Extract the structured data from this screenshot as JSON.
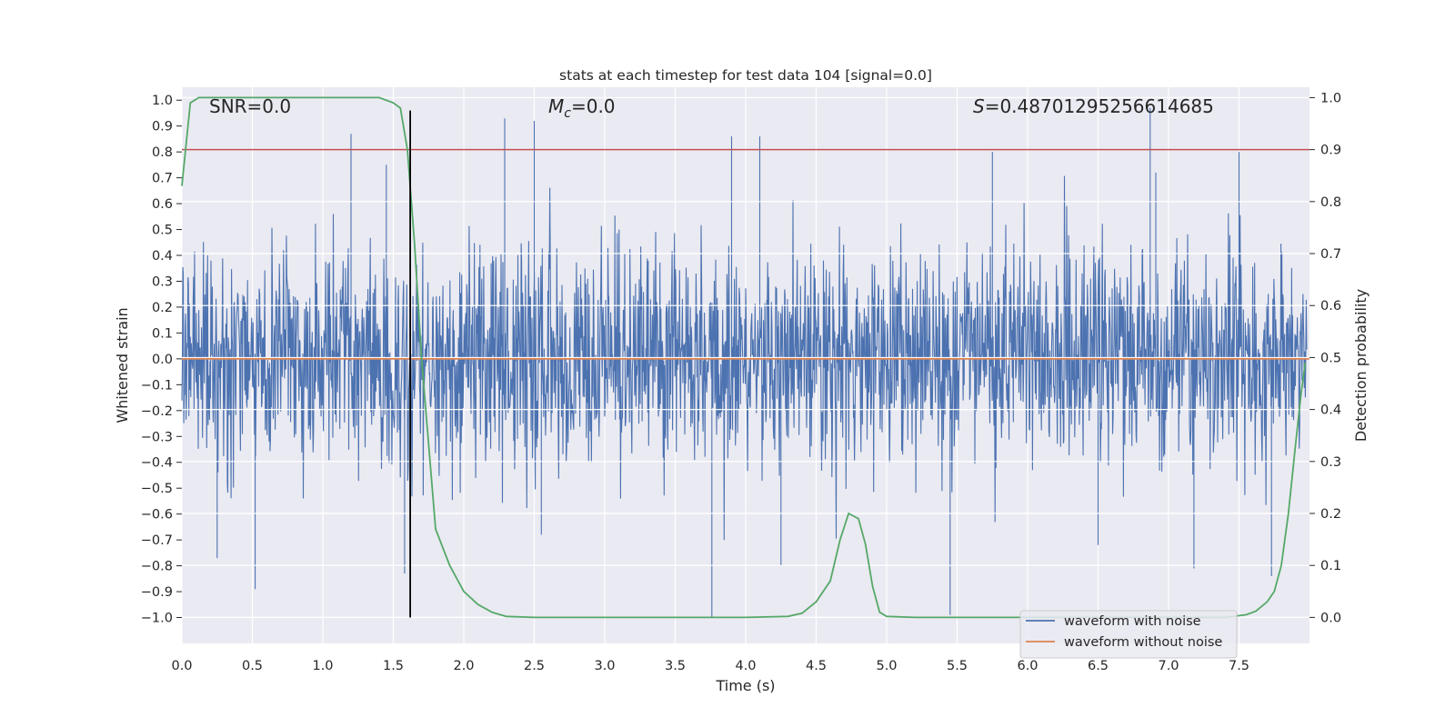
{
  "chart_data": {
    "type": "line",
    "title": "stats at each timestep for test data 104 [signal=0.0]",
    "xlabel": "Time (s)",
    "ylabel": "Whitened strain",
    "y2label": "Detection probability",
    "xlim": [
      0.0,
      8.0
    ],
    "ylim": [
      -1.1,
      1.05
    ],
    "y2lim": [
      -0.05,
      1.02
    ],
    "xticks": [
      "0.0",
      "0.5",
      "1.0",
      "1.5",
      "2.0",
      "2.5",
      "3.0",
      "3.5",
      "4.0",
      "4.5",
      "5.0",
      "5.5",
      "6.0",
      "6.5",
      "7.0",
      "7.5"
    ],
    "yticks": [
      "1.0",
      "0.9",
      "0.8",
      "0.7",
      "0.6",
      "0.5",
      "0.4",
      "0.3",
      "0.2",
      "0.1",
      "0.0",
      "−0.1",
      "−0.2",
      "−0.3",
      "−0.4",
      "−0.5",
      "−0.6",
      "−0.7",
      "−0.8",
      "−0.9",
      "−1.0"
    ],
    "y2ticks": [
      "1.0",
      "0.9",
      "0.8",
      "0.7",
      "0.6",
      "0.5",
      "0.4",
      "0.3",
      "0.2",
      "0.1",
      "0.0"
    ],
    "annotations": {
      "snr": "SNR=0.0",
      "mc": "=0.0",
      "mc_symbol": "M",
      "mc_sub": "c",
      "s": "=0.48701295256614685",
      "s_symbol": "S"
    },
    "legend": {
      "placement": "lower-right",
      "entries": [
        "waveform with noise",
        "waveform without noise"
      ]
    },
    "colors": {
      "noise": "#4c72b0",
      "clean": "#dd8452",
      "prob": "#55a868",
      "threshold": "#c44e52",
      "marker": "#000000",
      "background": "#eaeaf2"
    },
    "series": [
      {
        "name": "waveform with noise",
        "description": "dense noise band, mostly within -0.45..0.5, peaks near 0.97 at t~6.87 and -1.0 at t~3.76"
      },
      {
        "name": "waveform without noise",
        "x": [
          0.0,
          8.0
        ],
        "values": [
          0.0,
          0.0
        ]
      }
    ],
    "noise_peaks": [
      [
        0.52,
        -0.89
      ],
      [
        0.25,
        -0.77
      ],
      [
        1.2,
        0.87
      ],
      [
        1.45,
        0.75
      ],
      [
        1.58,
        -0.83
      ],
      [
        2.29,
        0.93
      ],
      [
        2.5,
        0.92
      ],
      [
        2.55,
        -0.68
      ],
      [
        3.76,
        -1.0
      ],
      [
        3.9,
        0.86
      ],
      [
        4.1,
        0.86
      ],
      [
        4.25,
        -0.8
      ],
      [
        5.45,
        -0.99
      ],
      [
        5.75,
        0.8
      ],
      [
        6.5,
        -0.72
      ],
      [
        6.87,
        0.97
      ],
      [
        6.91,
        0.72
      ],
      [
        7.18,
        -0.81
      ],
      [
        7.5,
        0.8
      ],
      [
        7.73,
        -0.84
      ]
    ],
    "detection_probability": {
      "x": [
        0.0,
        0.06,
        0.12,
        0.2,
        0.4,
        0.8,
        1.2,
        1.4,
        1.5,
        1.55,
        1.6,
        1.65,
        1.7,
        1.8,
        1.9,
        2.0,
        2.1,
        2.2,
        2.3,
        2.5,
        3.0,
        4.0,
        4.3,
        4.4,
        4.5,
        4.6,
        4.67,
        4.73,
        4.8,
        4.85,
        4.9,
        4.95,
        5.0,
        5.2,
        6.0,
        7.4,
        7.55,
        7.62,
        7.7,
        7.75,
        7.8,
        7.85,
        7.9,
        7.94,
        7.97
      ],
      "y": [
        0.83,
        0.99,
        1.0,
        1.0,
        1.0,
        1.0,
        1.0,
        1.0,
        0.99,
        0.98,
        0.9,
        0.72,
        0.5,
        0.17,
        0.1,
        0.05,
        0.025,
        0.01,
        0.002,
        0.0,
        0.0,
        0.0,
        0.002,
        0.008,
        0.03,
        0.07,
        0.15,
        0.2,
        0.19,
        0.14,
        0.06,
        0.01,
        0.002,
        0.0,
        0.0,
        0.0,
        0.005,
        0.012,
        0.03,
        0.05,
        0.1,
        0.2,
        0.33,
        0.43,
        0.49
      ]
    },
    "threshold": 0.9,
    "marker_time": 1.62
  }
}
